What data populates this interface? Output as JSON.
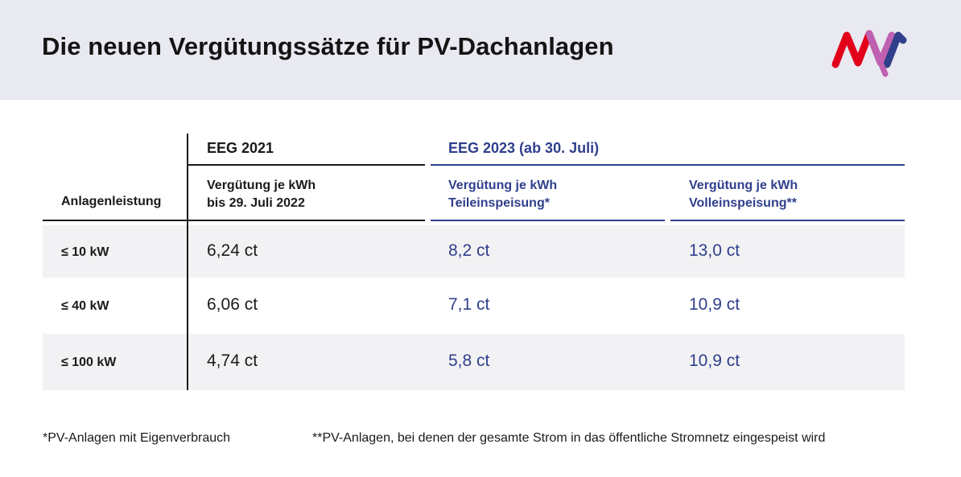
{
  "title": "Die neuen Vergütungssätze für PV-Dachanlagen",
  "logo": {
    "icon": "mvv-logo-icon",
    "colors": [
      "#e2001a",
      "#2f3f8c",
      "#c060b0"
    ]
  },
  "table": {
    "groups": {
      "eeg2021": "EEG 2021",
      "eeg2023": "EEG 2023 (ab 30. Juli)"
    },
    "columns": {
      "anlagenleistung": "Anlagenleistung",
      "col1_line1": "Vergütung je kWh",
      "col1_line2": "bis 29. Juli 2022",
      "col2_line1": "Vergütung je kWh",
      "col2_line2": "Teileinspeisung*",
      "col3_line1": "Vergütung je kWh",
      "col3_line2": "Volleinspeisung**"
    },
    "rows": [
      {
        "label": "≤ 10 kW",
        "eeg2021": "6,24 ct",
        "teil": "8,2 ct",
        "voll": "13,0 ct"
      },
      {
        "label": "≤ 40 kW",
        "eeg2021": "6,06 ct",
        "teil": "7,1 ct",
        "voll": "10,9 ct"
      },
      {
        "label": "≤ 100 kW",
        "eeg2021": "4,74 ct",
        "teil": "5,8 ct",
        "voll": "10,9 ct"
      }
    ]
  },
  "footnotes": {
    "one": "*PV-Anlagen mit Eigenverbrauch",
    "two": "**PV-Anlagen, bei denen der gesamte Strom in das öffentliche Stromnetz eingespeist wird"
  },
  "colors": {
    "accent_blue": "#2f3f8c",
    "text": "#1a1a1a",
    "stripe": "#f2f2f4",
    "header_bg": "#e9e9f1"
  }
}
